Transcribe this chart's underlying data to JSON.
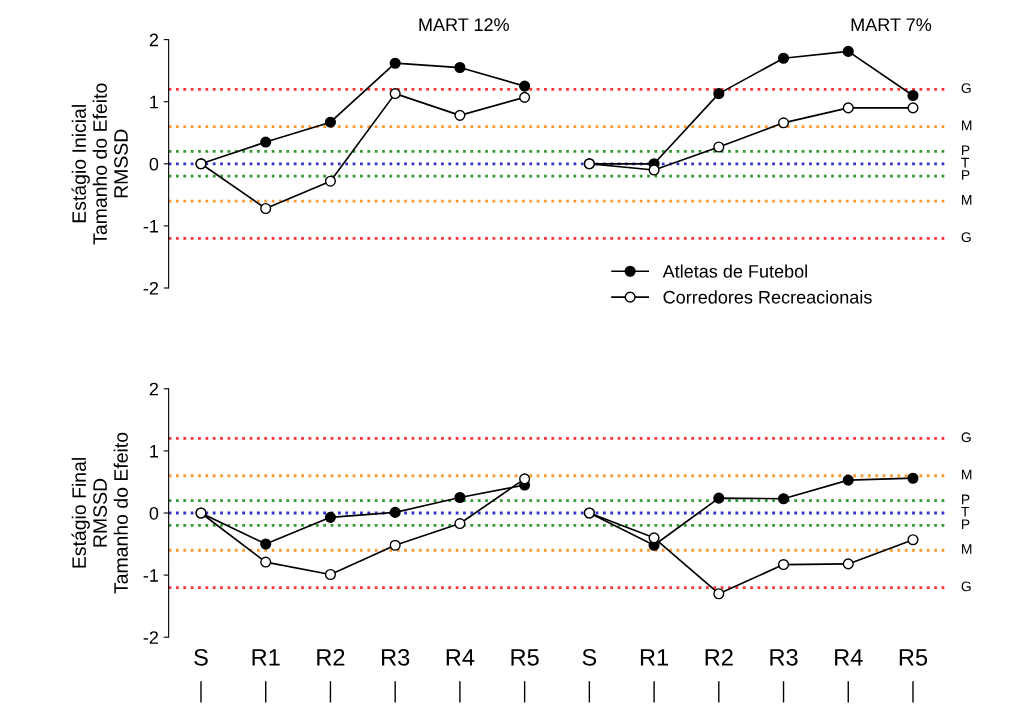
{
  "chart_data": [
    {
      "type": "line",
      "ylabel": "Estágio Inicial\nTamanho do Efeito\nRMSSD",
      "categories": [
        null,
        null,
        null,
        null,
        null,
        null,
        null,
        null,
        null,
        null,
        null,
        null
      ],
      "series": [
        {
          "name": "Atletas de Futebol",
          "color": "#000000",
          "values": [
            0,
            0.35,
            0.67,
            1.62,
            1.55,
            1.25,
            null,
            null,
            null,
            null,
            null,
            null
          ]
        },
        {
          "name": "Corredores Recreacionais",
          "color": "#ffffff",
          "values": [
            0,
            -0.72,
            -0.28,
            1.13,
            0.78,
            1.07,
            null,
            null,
            null,
            null,
            null,
            null
          ]
        },
        {
          "color": "#000000",
          "values": [
            null,
            null,
            null,
            null,
            null,
            null,
            0,
            0,
            1.13,
            1.7,
            1.81,
            1.1
          ]
        },
        {
          "color": "#ffffff",
          "values": [
            null,
            null,
            null,
            null,
            null,
            null,
            0,
            -0.1,
            0.27,
            0.66,
            0.9,
            0.9
          ]
        }
      ],
      "ylim": [
        -2,
        2
      ],
      "yticks": [
        -2,
        -1,
        0,
        1,
        2
      ],
      "tick_labels": "y",
      "marker": "circle",
      "line_style": "solid",
      "grid": false,
      "legend": "bottom right",
      "annotations": [
        "MART 12%",
        "MART 7%"
      ],
      "ref_lines": [
        {
          "axis": "y",
          "value": 1.2,
          "label": "G",
          "color": "#ff3333",
          "line_style": "dotted"
        },
        {
          "axis": "y",
          "value": 0.6,
          "label": "M",
          "color": "#ff9933",
          "line_style": "dotted"
        },
        {
          "axis": "y",
          "value": 0.2,
          "label": "P",
          "color": "#339933",
          "line_style": "dotted"
        },
        {
          "axis": "y",
          "value": 0,
          "label": "T",
          "color": "#3333cc",
          "line_style": "dotted"
        },
        {
          "axis": "y",
          "value": -0.2,
          "label": "P",
          "color": "#339933",
          "line_style": "dotted"
        },
        {
          "axis": "y",
          "value": -0.6,
          "label": "M",
          "color": "#ff9933",
          "line_style": "dotted"
        },
        {
          "axis": "y",
          "value": -1.2,
          "label": "G",
          "color": "#ff3333",
          "line_style": "dotted"
        }
      ]
    },
    {
      "type": "line",
      "ylabel": "Estágio Final\nRMSSD\nTamanho do Efeito",
      "categories": [
        "S",
        "R1",
        "R2",
        "R3",
        "R4",
        "R5",
        "S",
        "R1",
        "R2",
        "R3",
        "R4",
        "R5"
      ],
      "series": [
        {
          "color": "#000000",
          "values": [
            0,
            -0.5,
            -0.07,
            0.01,
            0.25,
            0.45,
            null,
            null,
            null,
            null,
            null,
            null
          ]
        },
        {
          "color": "#ffffff",
          "values": [
            0,
            -0.79,
            -0.99,
            -0.52,
            -0.17,
            0.55,
            null,
            null,
            null,
            null,
            null,
            null
          ]
        },
        {
          "color": "#000000",
          "values": [
            null,
            null,
            null,
            null,
            null,
            null,
            0,
            -0.52,
            0.24,
            0.23,
            0.53,
            0.56
          ]
        },
        {
          "color": "#ffffff",
          "values": [
            null,
            null,
            null,
            null,
            null,
            null,
            0,
            -0.4,
            -1.3,
            -0.83,
            -0.82,
            -0.43
          ]
        }
      ],
      "ylim": [
        -2,
        2
      ],
      "yticks": [
        -2,
        -1,
        0,
        1,
        2
      ],
      "marker": "circle",
      "line_style": "solid",
      "grid": false,
      "ref_lines": [
        {
          "axis": "y",
          "value": 1.2,
          "label": "G",
          "color": "#ff3333",
          "line_style": "dotted"
        },
        {
          "axis": "y",
          "value": 0.6,
          "label": "M",
          "color": "#ff9933",
          "line_style": "dotted"
        },
        {
          "axis": "y",
          "value": 0.2,
          "label": "P",
          "color": "#339933",
          "line_style": "dotted"
        },
        {
          "axis": "y",
          "value": 0,
          "label": "T",
          "color": "#3333cc",
          "line_style": "dotted"
        },
        {
          "axis": "y",
          "value": -0.2,
          "label": "P",
          "color": "#339933",
          "line_style": "dotted"
        },
        {
          "axis": "y",
          "value": -0.6,
          "label": "M",
          "color": "#ff9933",
          "line_style": "dotted"
        },
        {
          "axis": "y",
          "value": -1.2,
          "label": "G",
          "color": "#ff3333",
          "line_style": "dotted"
        }
      ]
    }
  ]
}
